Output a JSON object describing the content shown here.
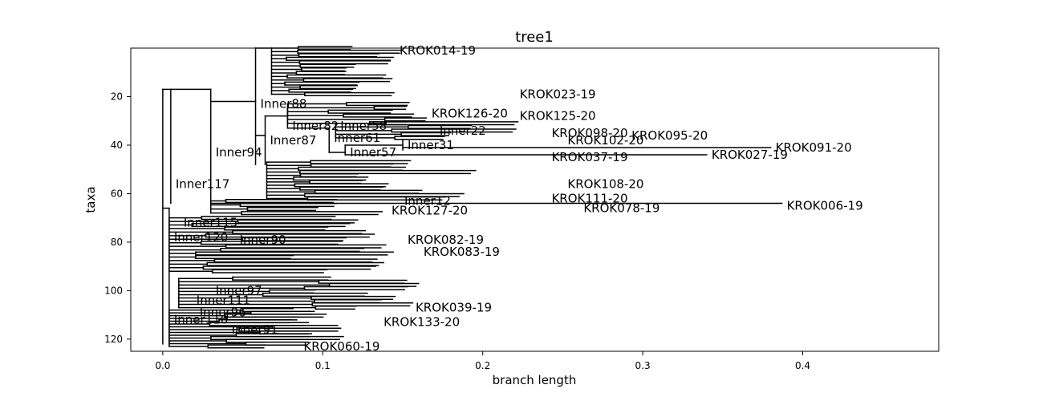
{
  "chart_data": {
    "type": "tree",
    "title": "tree1",
    "xlabel": "branch length",
    "ylabel": "taxa",
    "xlim": [
      -0.02,
      0.485
    ],
    "ylim": [
      125,
      0
    ],
    "x_ticks": [
      0.0,
      0.1,
      0.2,
      0.3,
      0.4
    ],
    "x_tick_labels": [
      "0.0",
      "0.1",
      "0.2",
      "0.3",
      "0.4"
    ],
    "y_ticks": [
      20,
      40,
      60,
      80,
      100,
      120
    ],
    "y_tick_labels": [
      "20",
      "40",
      "60",
      "80",
      "100",
      "120"
    ],
    "grid": false,
    "inner_nodes": [
      {
        "label": "Inner117",
        "x": 0.005,
        "y": 56
      },
      {
        "label": "Inner94",
        "x": 0.03,
        "y": 43
      },
      {
        "label": "Inner88",
        "x": 0.058,
        "y": 23
      },
      {
        "label": "Inner87",
        "x": 0.064,
        "y": 38
      },
      {
        "label": "Inner82",
        "x": 0.078,
        "y": 32
      },
      {
        "label": "Inner61",
        "x": 0.104,
        "y": 37
      },
      {
        "label": "Inner57",
        "x": 0.114,
        "y": 43
      },
      {
        "label": "Inner58",
        "x": 0.108,
        "y": 32
      },
      {
        "label": "Inner31",
        "x": 0.15,
        "y": 40
      },
      {
        "label": "Inner22",
        "x": 0.17,
        "y": 34
      },
      {
        "label": "Inner12",
        "x": 0.148,
        "y": 63
      },
      {
        "label": "Inner120",
        "x": 0.004,
        "y": 78
      },
      {
        "label": "Inner115",
        "x": 0.01,
        "y": 72
      },
      {
        "label": "Inner111",
        "x": 0.018,
        "y": 104
      },
      {
        "label": "Inner110",
        "x": 0.004,
        "y": 112
      },
      {
        "label": "Inner96",
        "x": 0.02,
        "y": 109
      },
      {
        "label": "Inner97",
        "x": 0.03,
        "y": 100
      },
      {
        "label": "Inner91",
        "x": 0.04,
        "y": 116
      },
      {
        "label": "Inner90",
        "x": 0.045,
        "y": 79
      }
    ],
    "leaves": [
      {
        "label": "KROK014-19",
        "x": 0.145,
        "y": 1
      },
      {
        "label": "KROK023-19",
        "x": 0.22,
        "y": 19
      },
      {
        "label": "KROK126-20",
        "x": 0.165,
        "y": 27
      },
      {
        "label": "KROK125-20",
        "x": 0.22,
        "y": 28
      },
      {
        "label": "KROK098-20",
        "x": 0.24,
        "y": 35
      },
      {
        "label": "KROK095-20",
        "x": 0.29,
        "y": 36
      },
      {
        "label": "KROK102-20",
        "x": 0.25,
        "y": 38
      },
      {
        "label": "KROK091-20",
        "x": 0.38,
        "y": 41
      },
      {
        "label": "KROK027-19",
        "x": 0.34,
        "y": 44
      },
      {
        "label": "KROK037-19",
        "x": 0.24,
        "y": 45
      },
      {
        "label": "KROK108-20",
        "x": 0.25,
        "y": 56
      },
      {
        "label": "KROK111-20",
        "x": 0.24,
        "y": 62
      },
      {
        "label": "KROK078-19",
        "x": 0.26,
        "y": 66
      },
      {
        "label": "KROK006-19",
        "x": 0.387,
        "y": 65
      },
      {
        "label": "KROK127-20",
        "x": 0.14,
        "y": 67
      },
      {
        "label": "KROK082-19",
        "x": 0.15,
        "y": 79
      },
      {
        "label": "KROK083-19",
        "x": 0.16,
        "y": 84
      },
      {
        "label": "KROK039-19",
        "x": 0.155,
        "y": 107
      },
      {
        "label": "KROK133-20",
        "x": 0.135,
        "y": 113
      },
      {
        "label": "KROK060-19",
        "x": 0.085,
        "y": 123
      }
    ]
  }
}
